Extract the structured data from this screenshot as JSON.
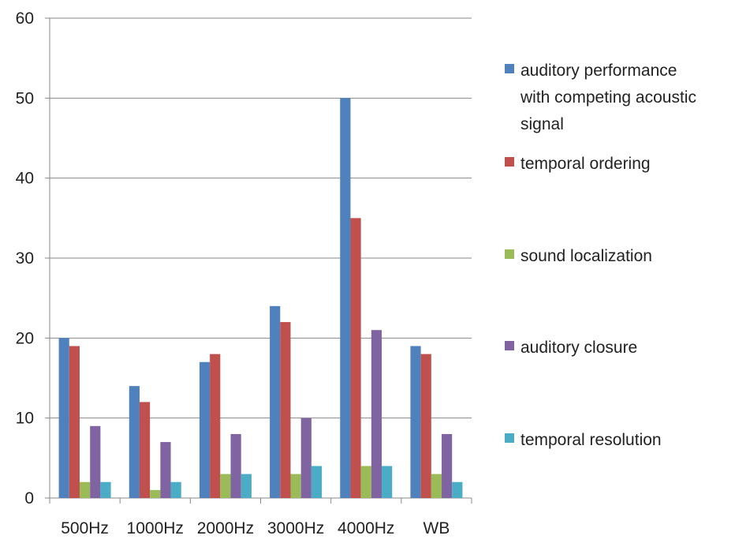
{
  "chart_data": {
    "type": "bar",
    "categories": [
      "500Hz",
      "1000Hz",
      "2000Hz",
      "3000Hz",
      "4000Hz",
      "WB"
    ],
    "series": [
      {
        "name": "auditory performance with competing acoustic signal",
        "values": [
          20,
          14,
          17,
          24,
          50,
          19
        ],
        "color": "#4F81BD"
      },
      {
        "name": "temporal ordering",
        "values": [
          19,
          12,
          18,
          22,
          35,
          18
        ],
        "color": "#C0504D"
      },
      {
        "name": "sound localization",
        "values": [
          2,
          1,
          3,
          3,
          4,
          3
        ],
        "color": "#9BBB59"
      },
      {
        "name": "auditory closure",
        "values": [
          9,
          7,
          8,
          10,
          21,
          8
        ],
        "color": "#8064A2"
      },
      {
        "name": "temporal resolution",
        "values": [
          2,
          2,
          3,
          4,
          4,
          2
        ],
        "color": "#4BACC6"
      }
    ],
    "y_ticks": [
      "0",
      "10",
      "20",
      "30",
      "40",
      "50",
      "60"
    ],
    "ylim": [
      0,
      60
    ],
    "grid": true,
    "legend_position": "right"
  }
}
